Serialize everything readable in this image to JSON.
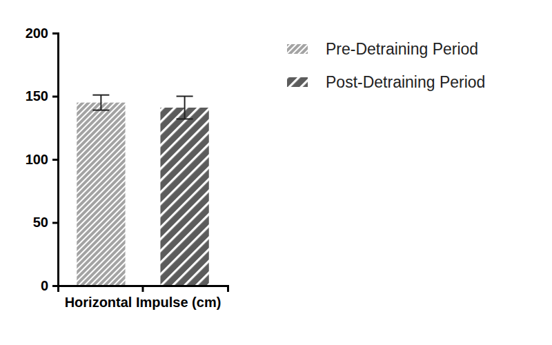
{
  "chart_data": {
    "type": "bar",
    "categories": [
      "Horizontal Impulse (cm)"
    ],
    "series": [
      {
        "name": "Pre-Detraining Period",
        "color": "#a3a3a3",
        "values": [
          145
        ],
        "errors": [
          6
        ]
      },
      {
        "name": "Post-Detraining Period",
        "color": "#5c5c5c",
        "values": [
          141
        ],
        "errors": [
          9
        ]
      }
    ],
    "ylim": [
      0,
      200
    ],
    "yticks": [
      0,
      50,
      100,
      150,
      200
    ],
    "grid": false,
    "legend": "upper right"
  }
}
